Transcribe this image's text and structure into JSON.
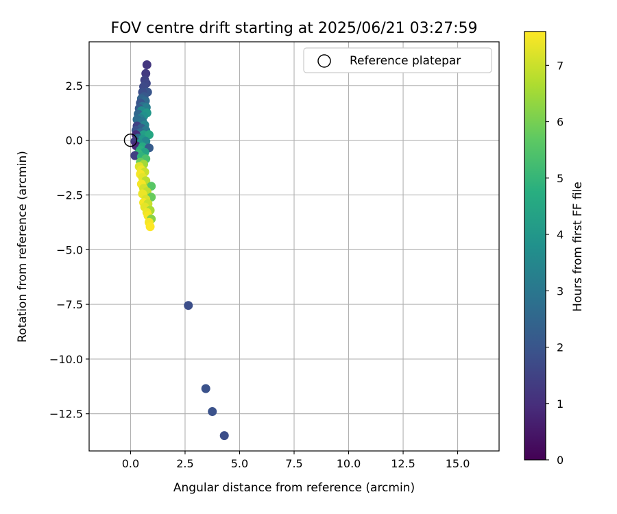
{
  "chart_data": {
    "type": "scatter",
    "title": "FOV centre drift starting at 2025/06/21 03:27:59",
    "xlabel": "Angular distance from reference (arcmin)",
    "ylabel": "Rotation from reference (arcmin)",
    "xlim": [
      -1.9,
      16.9
    ],
    "ylim": [
      -14.2,
      4.5
    ],
    "xticks": [
      0.0,
      2.5,
      5.0,
      7.5,
      10.0,
      12.5,
      15.0
    ],
    "xtick_labels": [
      "0.0",
      "2.5",
      "5.0",
      "7.5",
      "10.0",
      "12.5",
      "15.0"
    ],
    "yticks": [
      2.5,
      0.0,
      -2.5,
      -5.0,
      -7.5,
      -10.0,
      -12.5
    ],
    "ytick_labels": [
      "2.5",
      "0.0",
      "−2.5",
      "−5.0",
      "−7.5",
      "−10.0",
      "−12.5"
    ],
    "grid": true,
    "legend": {
      "placement": "top-right",
      "entries": [
        "Reference platepar"
      ]
    },
    "reference_point": {
      "x": 0.0,
      "y": 0.0
    },
    "colorbar": {
      "label": "Hours from first FF file",
      "min": 0,
      "max": 7.6,
      "ticks": [
        0,
        1,
        2,
        3,
        4,
        5,
        6,
        7
      ],
      "tick_labels": [
        "0",
        "1",
        "2",
        "3",
        "4",
        "5",
        "6",
        "7"
      ],
      "colormap": "viridis"
    },
    "points": [
      {
        "x": 0.75,
        "y": 3.45,
        "h": 1.2
      },
      {
        "x": 0.7,
        "y": 3.05,
        "h": 1.3
      },
      {
        "x": 0.65,
        "y": 2.75,
        "h": 1.5
      },
      {
        "x": 0.72,
        "y": 2.6,
        "h": 1.6
      },
      {
        "x": 0.6,
        "y": 2.45,
        "h": 1.7
      },
      {
        "x": 0.78,
        "y": 2.2,
        "h": 2.0
      },
      {
        "x": 0.55,
        "y": 2.2,
        "h": 1.8
      },
      {
        "x": 0.62,
        "y": 2.0,
        "h": 2.1
      },
      {
        "x": 0.5,
        "y": 1.9,
        "h": 2.4
      },
      {
        "x": 0.68,
        "y": 1.8,
        "h": 2.6
      },
      {
        "x": 0.45,
        "y": 1.7,
        "h": 2.0
      },
      {
        "x": 0.55,
        "y": 1.55,
        "h": 2.8
      },
      {
        "x": 0.72,
        "y": 1.5,
        "h": 3.2
      },
      {
        "x": 0.4,
        "y": 1.45,
        "h": 2.2
      },
      {
        "x": 0.5,
        "y": 1.35,
        "h": 3.6
      },
      {
        "x": 0.75,
        "y": 1.25,
        "h": 4.0
      },
      {
        "x": 0.35,
        "y": 1.2,
        "h": 2.5
      },
      {
        "x": 0.6,
        "y": 1.1,
        "h": 3.8
      },
      {
        "x": 0.45,
        "y": 1.0,
        "h": 3.3
      },
      {
        "x": 0.3,
        "y": 0.95,
        "h": 2.7
      },
      {
        "x": 0.55,
        "y": 0.85,
        "h": 3.0
      },
      {
        "x": 0.4,
        "y": 0.75,
        "h": 2.9
      },
      {
        "x": 0.65,
        "y": 0.7,
        "h": 3.4
      },
      {
        "x": 0.3,
        "y": 0.65,
        "h": 1.5
      },
      {
        "x": 0.5,
        "y": 0.55,
        "h": 2.3
      },
      {
        "x": 0.7,
        "y": 0.45,
        "h": 3.1
      },
      {
        "x": 0.25,
        "y": 0.45,
        "h": 1.9
      },
      {
        "x": 0.45,
        "y": 0.35,
        "h": 2.6
      },
      {
        "x": 0.6,
        "y": 0.25,
        "h": 4.2
      },
      {
        "x": 0.85,
        "y": 0.25,
        "h": 4.5
      },
      {
        "x": 0.25,
        "y": 0.25,
        "h": 1.0
      },
      {
        "x": 0.35,
        "y": 0.1,
        "h": 2.8
      },
      {
        "x": 0.55,
        "y": 0.05,
        "h": 4.0
      },
      {
        "x": 0.7,
        "y": -0.05,
        "h": 3.5
      },
      {
        "x": 0.2,
        "y": -0.05,
        "h": 1.3
      },
      {
        "x": 0.4,
        "y": -0.15,
        "h": 3.9
      },
      {
        "x": 0.25,
        "y": -0.25,
        "h": 0.9
      },
      {
        "x": 0.55,
        "y": -0.3,
        "h": 4.6
      },
      {
        "x": 0.85,
        "y": -0.35,
        "h": 2.2
      },
      {
        "x": 0.45,
        "y": -0.45,
        "h": 4.8
      },
      {
        "x": 0.65,
        "y": -0.55,
        "h": 4.4
      },
      {
        "x": 0.35,
        "y": -0.6,
        "h": 5.0
      },
      {
        "x": 0.2,
        "y": -0.7,
        "h": 1.4
      },
      {
        "x": 0.5,
        "y": -0.75,
        "h": 4.9
      },
      {
        "x": 0.7,
        "y": -0.85,
        "h": 5.4
      },
      {
        "x": 0.45,
        "y": -1.0,
        "h": 5.8
      },
      {
        "x": 0.6,
        "y": -1.1,
        "h": 6.5
      },
      {
        "x": 0.4,
        "y": -1.2,
        "h": 7.2
      },
      {
        "x": 0.5,
        "y": -1.35,
        "h": 7.4
      },
      {
        "x": 0.65,
        "y": -1.45,
        "h": 7.0
      },
      {
        "x": 0.45,
        "y": -1.55,
        "h": 7.5
      },
      {
        "x": 0.55,
        "y": -1.7,
        "h": 7.3
      },
      {
        "x": 0.7,
        "y": -1.85,
        "h": 6.8
      },
      {
        "x": 0.5,
        "y": -2.0,
        "h": 7.5
      },
      {
        "x": 0.95,
        "y": -2.1,
        "h": 5.6
      },
      {
        "x": 0.6,
        "y": -2.2,
        "h": 7.1
      },
      {
        "x": 0.75,
        "y": -2.35,
        "h": 6.9
      },
      {
        "x": 0.55,
        "y": -2.45,
        "h": 7.4
      },
      {
        "x": 0.95,
        "y": -2.6,
        "h": 5.8
      },
      {
        "x": 0.7,
        "y": -2.7,
        "h": 7.2
      },
      {
        "x": 0.6,
        "y": -2.85,
        "h": 7.5
      },
      {
        "x": 0.8,
        "y": -2.9,
        "h": 7.0
      },
      {
        "x": 0.65,
        "y": -3.05,
        "h": 7.3
      },
      {
        "x": 0.9,
        "y": -3.2,
        "h": 6.6
      },
      {
        "x": 0.75,
        "y": -3.3,
        "h": 7.4
      },
      {
        "x": 0.8,
        "y": -3.45,
        "h": 7.5
      },
      {
        "x": 0.95,
        "y": -3.6,
        "h": 6.2
      },
      {
        "x": 0.85,
        "y": -3.75,
        "h": 7.5
      },
      {
        "x": 0.9,
        "y": -3.95,
        "h": 7.6
      },
      {
        "x": 2.65,
        "y": -7.55,
        "h": 1.8
      },
      {
        "x": 3.45,
        "y": -11.35,
        "h": 1.9
      },
      {
        "x": 3.75,
        "y": -12.4,
        "h": 1.9
      },
      {
        "x": 4.3,
        "y": -13.5,
        "h": 1.8
      }
    ]
  }
}
